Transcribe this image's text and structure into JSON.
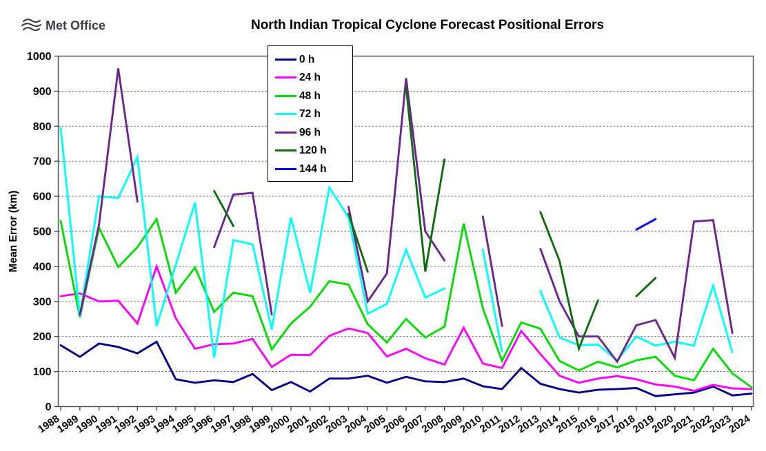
{
  "header": {
    "logo_text": "Met Office",
    "title": "North Indian Tropical Cyclone Forecast Positional Errors"
  },
  "chart_data": {
    "type": "line",
    "title": "North Indian Tropical Cyclone Forecast Positional Errors",
    "xlabel": "",
    "ylabel": "Mean Error (km)",
    "ylim": [
      0,
      1000
    ],
    "ytick_interval": 100,
    "grid": "horizontal dashed gridlines every 100 km",
    "legend_position": "inside top, left-of-center, vertical box",
    "x": [
      1988,
      1989,
      1990,
      1991,
      1992,
      1993,
      1994,
      1995,
      1996,
      1997,
      1998,
      1999,
      2000,
      2001,
      2002,
      2003,
      2004,
      2005,
      2006,
      2007,
      2008,
      2009,
      2010,
      2011,
      2012,
      2013,
      2014,
      2015,
      2016,
      2017,
      2018,
      2019,
      2020,
      2021,
      2022,
      2023,
      2024
    ],
    "series": [
      {
        "name": "0 h",
        "color": "#00008B",
        "values": [
          175,
          142,
          180,
          170,
          152,
          185,
          78,
          68,
          75,
          70,
          93,
          47,
          70,
          43,
          80,
          80,
          88,
          68,
          85,
          72,
          70,
          80,
          58,
          50,
          110,
          65,
          50,
          40,
          48,
          50,
          53,
          30,
          35,
          40,
          57,
          32,
          37
        ]
      },
      {
        "name": "24 h",
        "color": "#FF00FF",
        "values": [
          315,
          323,
          300,
          302,
          237,
          400,
          252,
          165,
          178,
          180,
          193,
          113,
          148,
          147,
          202,
          223,
          210,
          143,
          165,
          138,
          120,
          225,
          123,
          110,
          216,
          150,
          88,
          68,
          80,
          87,
          78,
          63,
          57,
          45,
          62,
          52,
          50
        ]
      },
      {
        "name": "48 h",
        "color": "#00DF00",
        "values": [
          530,
          255,
          510,
          398,
          455,
          535,
          325,
          397,
          270,
          325,
          315,
          163,
          237,
          285,
          358,
          348,
          235,
          183,
          250,
          197,
          228,
          522,
          280,
          130,
          240,
          222,
          130,
          103,
          128,
          112,
          132,
          142,
          88,
          75,
          165,
          95,
          55
        ]
      },
      {
        "name": "72 h",
        "color": "#00FFFF",
        "values": [
          795,
          258,
          600,
          595,
          712,
          230,
          405,
          582,
          140,
          475,
          463,
          220,
          540,
          325,
          625,
          540,
          265,
          293,
          448,
          311,
          337,
          null,
          448,
          157,
          null,
          330,
          197,
          175,
          177,
          132,
          200,
          174,
          185,
          174,
          345,
          155,
          null
        ]
      },
      {
        "name": "96 h",
        "color": "#6E2393",
        "values": [
          null,
          262,
          520,
          965,
          585,
          null,
          null,
          null,
          455,
          605,
          610,
          263,
          null,
          null,
          null,
          570,
          300,
          380,
          937,
          500,
          417,
          null,
          542,
          230,
          null,
          450,
          300,
          200,
          200,
          128,
          232,
          247,
          139,
          528,
          532,
          210,
          null
        ]
      },
      {
        "name": "120 h",
        "color": "#0B6E0B",
        "values": [
          null,
          null,
          null,
          null,
          null,
          null,
          null,
          null,
          615,
          515,
          null,
          null,
          null,
          null,
          null,
          550,
          385,
          null,
          912,
          385,
          705,
          null,
          null,
          null,
          null,
          555,
          415,
          165,
          303,
          null,
          315,
          367,
          null,
          null,
          null,
          null,
          null
        ]
      },
      {
        "name": "144 h",
        "color": "#0000FF",
        "values": [
          null,
          null,
          null,
          null,
          null,
          null,
          null,
          null,
          null,
          null,
          null,
          null,
          null,
          null,
          null,
          null,
          null,
          null,
          null,
          null,
          null,
          null,
          null,
          null,
          null,
          null,
          null,
          null,
          null,
          null,
          505,
          535,
          null,
          null,
          null,
          null,
          null
        ]
      }
    ]
  }
}
